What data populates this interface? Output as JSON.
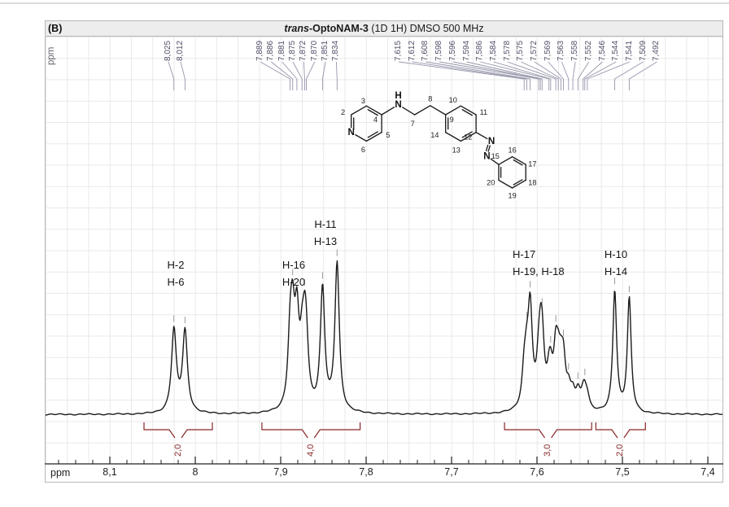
{
  "panel": {
    "corner_label": "(B)",
    "title": {
      "italic": "trans",
      "bold": "-OptoNAM-3",
      "rest": " (1D 1H) DMSO 500 MHz"
    },
    "y_unit_label": "ppm"
  },
  "colors": {
    "spectrum": "#1b1b1b",
    "integral": "#8a2727",
    "peak_label": "#50506a",
    "leader_line": "#9595ab",
    "grid": "#e9e9e9",
    "axis": "#222222",
    "apex_tick": "#9a9a9a",
    "header_bg": "#ededed",
    "panel_border": "#b8b8b8"
  },
  "chart_data": {
    "type": "line",
    "title": "trans-OptoNAM-3 (1D 1H) DMSO 500 MHz",
    "xlabel": "ppm",
    "x_axis_reversed": true,
    "xlim": [
      8.176,
      7.383
    ],
    "x_major_ticks": [
      8.1,
      8.0,
      7.9,
      7.8,
      7.7,
      7.6,
      7.5,
      7.4
    ],
    "x_major_tick_labels": [
      "8,1",
      "8",
      "7,9",
      "7,8",
      "7,7",
      "7,6",
      "7,5",
      "7,4"
    ],
    "x_minor_tick_step": 0.02,
    "grid": true,
    "peak_label_groups": [
      [
        "8,025",
        "8,012"
      ],
      [
        "7,889",
        "7,886",
        "7,881",
        "7,875",
        "7,872",
        "7,870",
        "7,851",
        "7,834"
      ],
      [
        "7,615",
        "7,612",
        "7,608",
        "7,598",
        "7,596",
        "7,594",
        "7,586",
        "7,584",
        "7,578",
        "7,575",
        "7,572",
        "7,569",
        "7,563",
        "7,558",
        "7,552",
        "7,546",
        "7,544",
        "7,541",
        "7,509",
        "7,492"
      ]
    ],
    "peaks": [
      {
        "ppm": 8.025,
        "rel_height": 0.53,
        "hwhm": 0.0034
      },
      {
        "ppm": 8.012,
        "rel_height": 0.52,
        "hwhm": 0.0034
      },
      {
        "ppm": 7.889,
        "rel_height": 0.4,
        "hwhm": 0.003
      },
      {
        "ppm": 7.886,
        "rel_height": 0.47,
        "hwhm": 0.003
      },
      {
        "ppm": 7.881,
        "rel_height": 0.52,
        "hwhm": 0.003
      },
      {
        "ppm": 7.875,
        "rel_height": 0.28,
        "hwhm": 0.003
      },
      {
        "ppm": 7.872,
        "rel_height": 0.34,
        "hwhm": 0.003
      },
      {
        "ppm": 7.87,
        "rel_height": 0.3,
        "hwhm": 0.003
      },
      {
        "ppm": 7.851,
        "rel_height": 0.78,
        "hwhm": 0.0031
      },
      {
        "ppm": 7.834,
        "rel_height": 0.95,
        "hwhm": 0.0031
      },
      {
        "ppm": 7.615,
        "rel_height": 0.2,
        "hwhm": 0.003
      },
      {
        "ppm": 7.612,
        "rel_height": 0.23,
        "hwhm": 0.003
      },
      {
        "ppm": 7.608,
        "rel_height": 0.61,
        "hwhm": 0.003
      },
      {
        "ppm": 7.598,
        "rel_height": 0.2,
        "hwhm": 0.003
      },
      {
        "ppm": 7.596,
        "rel_height": 0.23,
        "hwhm": 0.003
      },
      {
        "ppm": 7.594,
        "rel_height": 0.35,
        "hwhm": 0.003
      },
      {
        "ppm": 7.586,
        "rel_height": 0.14,
        "hwhm": 0.003
      },
      {
        "ppm": 7.584,
        "rel_height": 0.16,
        "hwhm": 0.003
      },
      {
        "ppm": 7.578,
        "rel_height": 0.32,
        "hwhm": 0.003
      },
      {
        "ppm": 7.575,
        "rel_height": 0.19,
        "hwhm": 0.003
      },
      {
        "ppm": 7.572,
        "rel_height": 0.16,
        "hwhm": 0.003
      },
      {
        "ppm": 7.569,
        "rel_height": 0.26,
        "hwhm": 0.003
      },
      {
        "ppm": 7.563,
        "rel_height": 0.11,
        "hwhm": 0.003
      },
      {
        "ppm": 7.558,
        "rel_height": 0.09,
        "hwhm": 0.003
      },
      {
        "ppm": 7.552,
        "rel_height": 0.11,
        "hwhm": 0.003
      },
      {
        "ppm": 7.546,
        "rel_height": 0.08,
        "hwhm": 0.003
      },
      {
        "ppm": 7.544,
        "rel_height": 0.09,
        "hwhm": 0.003
      },
      {
        "ppm": 7.541,
        "rel_height": 0.07,
        "hwhm": 0.003
      },
      {
        "ppm": 7.509,
        "rel_height": 0.78,
        "hwhm": 0.0027
      },
      {
        "ppm": 7.492,
        "rel_height": 0.73,
        "hwhm": 0.0027
      }
    ],
    "apex_tick_ppms": [
      8.025,
      8.012,
      7.886,
      7.872,
      7.851,
      7.834,
      7.612,
      7.608,
      7.594,
      7.584,
      7.578,
      7.569,
      7.563,
      7.552,
      7.544,
      7.509,
      7.492
    ],
    "assignments": [
      {
        "lines": [
          "H-2",
          "H-6"
        ],
        "ppm": 8.018
      },
      {
        "lines": [
          "H-16",
          "H-20"
        ],
        "ppm": 7.885
      },
      {
        "lines": [
          "H-11",
          "H-13"
        ],
        "ppm": 7.848
      },
      {
        "lines": [
          "H-17",
          "H-19, H-18"
        ],
        "ppm": 7.6
      },
      {
        "lines": [
          "H-10",
          "H-14"
        ],
        "ppm": 7.501
      }
    ],
    "integrals": [
      {
        "value": "2,0",
        "from_ppm": 8.06,
        "to_ppm": 7.98
      },
      {
        "value": "4,0",
        "from_ppm": 7.922,
        "to_ppm": 7.807
      },
      {
        "value": "3,0",
        "from_ppm": 7.638,
        "to_ppm": 7.536
      },
      {
        "value": "2,0",
        "from_ppm": 7.531,
        "to_ppm": 7.473
      }
    ]
  },
  "structure": {
    "position_labels": [
      "2",
      "3",
      "4",
      "5",
      "6",
      "7",
      "8",
      "9",
      "10",
      "11",
      "12",
      "13",
      "14",
      "15",
      "16",
      "17",
      "18",
      "19",
      "20"
    ],
    "atoms": {
      "pyridine_n": "N",
      "amine_n": "N",
      "amine_h": "H",
      "azo_n_1": "N",
      "azo_n_2": "N"
    }
  }
}
